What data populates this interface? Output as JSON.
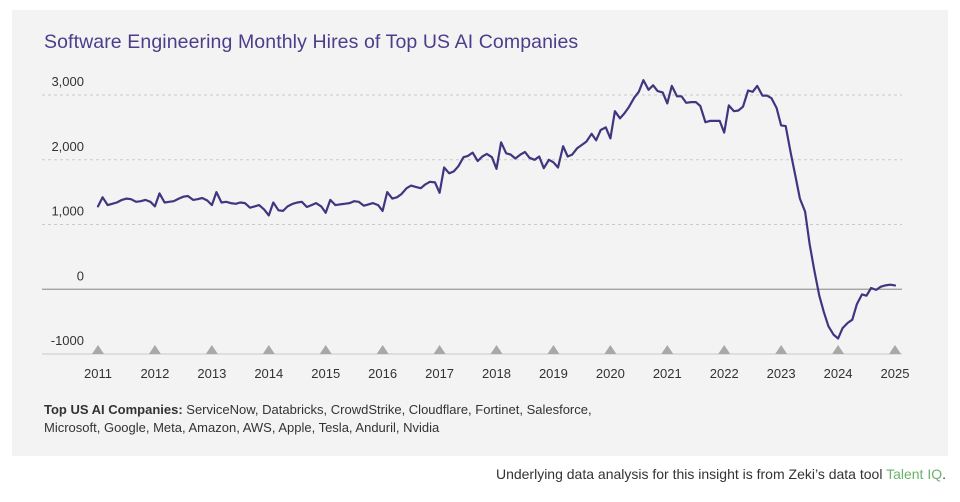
{
  "chart_data": {
    "type": "line",
    "title": "Software Engineering Monthly Hires of Top US AI Companies",
    "xlabel": "",
    "ylabel": "",
    "xlim": [
      2010.9,
      2025.1
    ],
    "ylim": [
      -1000,
      3000
    ],
    "y_ticks": [
      {
        "value": 3000,
        "label": "3,000"
      },
      {
        "value": 2000,
        "label": "2,000"
      },
      {
        "value": 1000,
        "label": "1,000"
      },
      {
        "value": 0,
        "label": "0"
      },
      {
        "value": -1000,
        "label": "-1000"
      }
    ],
    "x_ticks": [
      "2011",
      "2012",
      "2013",
      "2014",
      "2015",
      "2016",
      "2017",
      "2018",
      "2019",
      "2020",
      "2021",
      "2022",
      "2023",
      "2024",
      "2025"
    ],
    "grid": "horizontal-dashed",
    "series": [
      {
        "name": "",
        "color": "#3f3680",
        "points": [
          [
            2011.0,
            1280
          ],
          [
            2011.08,
            1420
          ],
          [
            2011.17,
            1300
          ],
          [
            2011.25,
            1320
          ],
          [
            2011.33,
            1340
          ],
          [
            2011.42,
            1380
          ],
          [
            2011.5,
            1400
          ],
          [
            2011.58,
            1390
          ],
          [
            2011.67,
            1350
          ],
          [
            2011.75,
            1360
          ],
          [
            2011.83,
            1380
          ],
          [
            2011.92,
            1350
          ],
          [
            2012.0,
            1280
          ],
          [
            2012.08,
            1480
          ],
          [
            2012.17,
            1340
          ],
          [
            2012.25,
            1350
          ],
          [
            2012.33,
            1360
          ],
          [
            2012.42,
            1400
          ],
          [
            2012.5,
            1430
          ],
          [
            2012.58,
            1440
          ],
          [
            2012.67,
            1380
          ],
          [
            2012.75,
            1390
          ],
          [
            2012.83,
            1410
          ],
          [
            2012.92,
            1370
          ],
          [
            2013.0,
            1300
          ],
          [
            2013.08,
            1500
          ],
          [
            2013.17,
            1340
          ],
          [
            2013.25,
            1350
          ],
          [
            2013.33,
            1330
          ],
          [
            2013.42,
            1320
          ],
          [
            2013.5,
            1340
          ],
          [
            2013.58,
            1330
          ],
          [
            2013.67,
            1260
          ],
          [
            2013.75,
            1280
          ],
          [
            2013.83,
            1300
          ],
          [
            2013.92,
            1230
          ],
          [
            2014.0,
            1140
          ],
          [
            2014.08,
            1340
          ],
          [
            2014.17,
            1220
          ],
          [
            2014.25,
            1210
          ],
          [
            2014.33,
            1280
          ],
          [
            2014.42,
            1320
          ],
          [
            2014.5,
            1340
          ],
          [
            2014.58,
            1350
          ],
          [
            2014.67,
            1270
          ],
          [
            2014.75,
            1300
          ],
          [
            2014.83,
            1330
          ],
          [
            2014.92,
            1280
          ],
          [
            2015.0,
            1180
          ],
          [
            2015.08,
            1380
          ],
          [
            2015.17,
            1300
          ],
          [
            2015.25,
            1310
          ],
          [
            2015.33,
            1320
          ],
          [
            2015.42,
            1330
          ],
          [
            2015.5,
            1360
          ],
          [
            2015.58,
            1350
          ],
          [
            2015.67,
            1290
          ],
          [
            2015.75,
            1310
          ],
          [
            2015.83,
            1330
          ],
          [
            2015.92,
            1300
          ],
          [
            2016.0,
            1210
          ],
          [
            2016.08,
            1500
          ],
          [
            2016.17,
            1400
          ],
          [
            2016.25,
            1420
          ],
          [
            2016.33,
            1470
          ],
          [
            2016.42,
            1560
          ],
          [
            2016.5,
            1600
          ],
          [
            2016.58,
            1580
          ],
          [
            2016.67,
            1560
          ],
          [
            2016.75,
            1620
          ],
          [
            2016.83,
            1660
          ],
          [
            2016.92,
            1650
          ],
          [
            2017.0,
            1490
          ],
          [
            2017.08,
            1880
          ],
          [
            2017.17,
            1790
          ],
          [
            2017.25,
            1820
          ],
          [
            2017.33,
            1900
          ],
          [
            2017.42,
            2040
          ],
          [
            2017.5,
            2060
          ],
          [
            2017.58,
            2110
          ],
          [
            2017.67,
            1980
          ],
          [
            2017.75,
            2050
          ],
          [
            2017.83,
            2090
          ],
          [
            2017.92,
            2040
          ],
          [
            2018.0,
            1860
          ],
          [
            2018.08,
            2270
          ],
          [
            2018.17,
            2100
          ],
          [
            2018.25,
            2080
          ],
          [
            2018.33,
            2020
          ],
          [
            2018.42,
            2080
          ],
          [
            2018.5,
            2120
          ],
          [
            2018.58,
            2030
          ],
          [
            2018.67,
            2000
          ],
          [
            2018.75,
            2050
          ],
          [
            2018.83,
            1870
          ],
          [
            2018.92,
            2000
          ],
          [
            2019.0,
            1960
          ],
          [
            2019.08,
            1880
          ],
          [
            2019.17,
            2210
          ],
          [
            2019.25,
            2050
          ],
          [
            2019.33,
            2080
          ],
          [
            2019.42,
            2180
          ],
          [
            2019.5,
            2230
          ],
          [
            2019.58,
            2280
          ],
          [
            2019.67,
            2400
          ],
          [
            2019.75,
            2300
          ],
          [
            2019.83,
            2460
          ],
          [
            2019.92,
            2500
          ],
          [
            2020.0,
            2330
          ],
          [
            2020.08,
            2750
          ],
          [
            2020.17,
            2640
          ],
          [
            2020.25,
            2720
          ],
          [
            2020.33,
            2820
          ],
          [
            2020.42,
            2960
          ],
          [
            2020.5,
            3050
          ],
          [
            2020.58,
            3230
          ],
          [
            2020.67,
            3080
          ],
          [
            2020.75,
            3150
          ],
          [
            2020.83,
            3060
          ],
          [
            2020.92,
            3040
          ],
          [
            2021.0,
            2870
          ],
          [
            2021.08,
            3140
          ],
          [
            2021.17,
            2980
          ],
          [
            2021.25,
            2980
          ],
          [
            2021.33,
            2880
          ],
          [
            2021.42,
            2890
          ],
          [
            2021.5,
            2890
          ],
          [
            2021.58,
            2830
          ],
          [
            2021.67,
            2580
          ],
          [
            2021.75,
            2600
          ],
          [
            2021.83,
            2600
          ],
          [
            2021.92,
            2600
          ],
          [
            2022.0,
            2420
          ],
          [
            2022.08,
            2840
          ],
          [
            2022.17,
            2750
          ],
          [
            2022.25,
            2760
          ],
          [
            2022.33,
            2820
          ],
          [
            2022.42,
            3070
          ],
          [
            2022.5,
            3050
          ],
          [
            2022.58,
            3140
          ],
          [
            2022.67,
            2990
          ],
          [
            2022.75,
            2990
          ],
          [
            2022.83,
            2950
          ],
          [
            2022.92,
            2800
          ],
          [
            2023.0,
            2530
          ],
          [
            2023.08,
            2520
          ],
          [
            2023.17,
            2100
          ],
          [
            2023.25,
            1750
          ],
          [
            2023.33,
            1400
          ],
          [
            2023.42,
            1200
          ],
          [
            2023.5,
            700
          ],
          [
            2023.58,
            300
          ],
          [
            2023.67,
            -100
          ],
          [
            2023.75,
            -350
          ],
          [
            2023.83,
            -570
          ],
          [
            2023.92,
            -700
          ],
          [
            2024.0,
            -760
          ],
          [
            2024.08,
            -600
          ],
          [
            2024.17,
            -520
          ],
          [
            2024.25,
            -470
          ],
          [
            2024.33,
            -230
          ],
          [
            2024.42,
            -80
          ],
          [
            2024.5,
            -100
          ],
          [
            2024.58,
            20
          ],
          [
            2024.67,
            -10
          ],
          [
            2024.75,
            40
          ],
          [
            2024.83,
            60
          ],
          [
            2024.92,
            70
          ],
          [
            2025.0,
            60
          ]
        ]
      }
    ]
  },
  "notes": {
    "companies_label": "Top US AI Companies:",
    "companies_list": " ServiceNow, Databricks, CrowdStrike, Cloudflare, Fortinet, Salesforce, Microsoft, Google, Meta, Amazon, AWS, Apple, Tesla, Anduril, Nvidia",
    "footer_text": "Underlying data analysis for this insight is from Zeki’s data tool ",
    "footer_link": "Talent IQ",
    "footer_end": "."
  },
  "colors": {
    "line": "#3f3680",
    "title": "#4c3d8a",
    "link": "#6ab36a",
    "panel": "#f4f3f3"
  }
}
